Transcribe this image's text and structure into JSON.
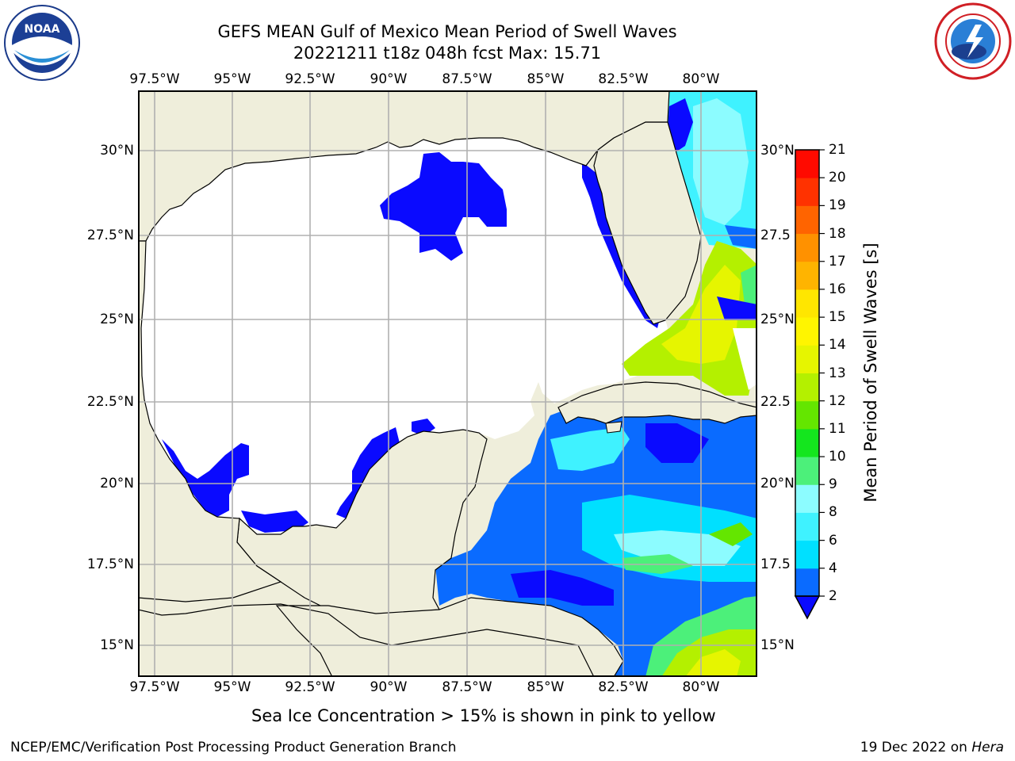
{
  "header": {
    "title_line1": "GEFS MEAN Gulf of Mexico Mean Period of Swell Waves",
    "title_line2": "20221211 t18z 048h fcst   Max: 15.71"
  },
  "logos": {
    "left": {
      "icon": "noaa-logo-icon",
      "text": "NOAA"
    },
    "right": {
      "icon": "nws-logo-icon"
    }
  },
  "map": {
    "lon_ticks": [
      "97.5°W",
      "95°W",
      "92.5°W",
      "90°W",
      "87.5°W",
      "85°W",
      "82.5°W",
      "80°W"
    ],
    "lat_ticks": [
      "30°N",
      "27.5°N",
      "25°N",
      "22.5°N",
      "20°N",
      "17.5°N",
      "15°N"
    ],
    "lat_ticks_right": [
      "30°N",
      "27.5",
      "25°N",
      "22.5",
      "20°N",
      "17.5",
      "15°N"
    ],
    "extent": {
      "lon": [
        -98,
        -78.2
      ],
      "lat": [
        14,
        31.7
      ]
    },
    "colors": {
      "land": "#efeedb",
      "ocean_no_data": "#ffffff",
      "grid": "#b0b0b0",
      "coast": "#000000"
    }
  },
  "colorbar": {
    "label": "Mean Period of Swell Waves [s]",
    "ticks": [
      "2",
      "4",
      "6",
      "8",
      "9",
      "10",
      "11",
      "12",
      "13",
      "14",
      "15",
      "16",
      "17",
      "18",
      "19",
      "20",
      "21"
    ],
    "colors": [
      "#0a6bff",
      "#00e0ff",
      "#3ff2ff",
      "#8cfcff",
      "#4cf07a",
      "#14e61e",
      "#64e600",
      "#b4f000",
      "#e6f500",
      "#fff500",
      "#ffe600",
      "#ffb400",
      "#ff9100",
      "#ff6400",
      "#ff3200",
      "#ff0a00"
    ],
    "extend_color": "#0a0aff"
  },
  "footer": {
    "note": "Sea Ice Concentration > 15% is shown in pink to yellow",
    "left": "NCEP/EMC/Verification Post Processing Product Generation Branch",
    "right_date": "19 Dec 2022 on",
    "right_host": "Hera"
  }
}
